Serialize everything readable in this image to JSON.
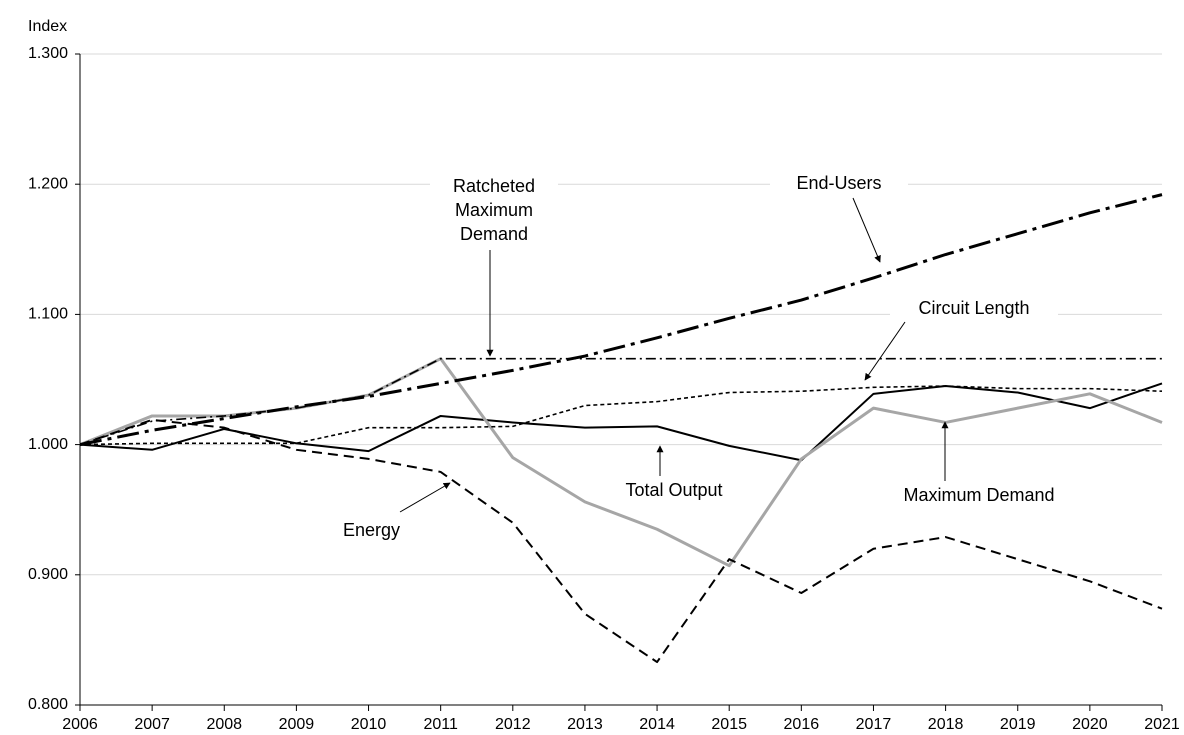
{
  "chart_data": {
    "type": "line",
    "y_label": "Index",
    "x": [
      2006,
      2007,
      2008,
      2009,
      2010,
      2011,
      2012,
      2013,
      2014,
      2015,
      2016,
      2017,
      2018,
      2019,
      2020,
      2021
    ],
    "xlim": [
      2006,
      2021
    ],
    "xticks": [
      2006,
      2007,
      2008,
      2009,
      2010,
      2011,
      2012,
      2013,
      2014,
      2015,
      2016,
      2017,
      2018,
      2019,
      2020,
      2021
    ],
    "ylim": [
      0.8,
      1.3
    ],
    "yticks": [
      {
        "value": 0.8,
        "label": "0.800"
      },
      {
        "value": 0.9,
        "label": "0.900"
      },
      {
        "value": 1.0,
        "label": "1.000"
      },
      {
        "value": 1.1,
        "label": "1.100"
      },
      {
        "value": 1.2,
        "label": "1.200"
      },
      {
        "value": 1.3,
        "label": "1.300"
      }
    ],
    "grid": true,
    "series": [
      {
        "name": "Total Output",
        "color": "#000000",
        "line_style": "solid",
        "values": [
          1.0,
          0.996,
          1.012,
          1.001,
          0.995,
          1.022,
          1.017,
          1.013,
          1.014,
          0.999,
          0.988,
          1.039,
          1.045,
          1.04,
          1.028,
          1.047
        ]
      },
      {
        "name": "Maximum Demand",
        "color": "#a6a6a6",
        "line_style": "solid",
        "values": [
          1.0,
          1.022,
          1.022,
          1.028,
          1.038,
          1.066,
          0.99,
          0.956,
          0.935,
          0.907,
          0.989,
          1.028,
          1.017,
          1.028,
          1.039,
          1.017
        ]
      },
      {
        "name": "Ratcheted Maximum Demand",
        "color": "#000000",
        "line_style": "dash-dot",
        "values": [
          1.0,
          1.018,
          1.022,
          1.028,
          1.038,
          1.066,
          1.066,
          1.066,
          1.066,
          1.066,
          1.066,
          1.066,
          1.066,
          1.066,
          1.066,
          1.066
        ]
      },
      {
        "name": "End-Users",
        "color": "#000000",
        "line_style": "long-dash-dot",
        "values": [
          1.0,
          1.011,
          1.02,
          1.029,
          1.037,
          1.047,
          1.057,
          1.068,
          1.082,
          1.097,
          1.111,
          1.128,
          1.146,
          1.162,
          1.178,
          1.192
        ]
      },
      {
        "name": "Circuit Length",
        "color": "#000000",
        "line_style": "short-dash",
        "values": [
          1.0,
          1.001,
          1.001,
          1.001,
          1.013,
          1.013,
          1.014,
          1.03,
          1.033,
          1.04,
          1.041,
          1.044,
          1.045,
          1.043,
          1.043,
          1.041
        ]
      },
      {
        "name": "Energy",
        "color": "#000000",
        "line_style": "dash",
        "values": [
          1.0,
          1.019,
          1.013,
          0.996,
          0.989,
          0.979,
          0.94,
          0.87,
          0.833,
          0.912,
          0.886,
          0.92,
          0.929,
          0.912,
          0.895,
          0.874
        ]
      }
    ]
  }
}
